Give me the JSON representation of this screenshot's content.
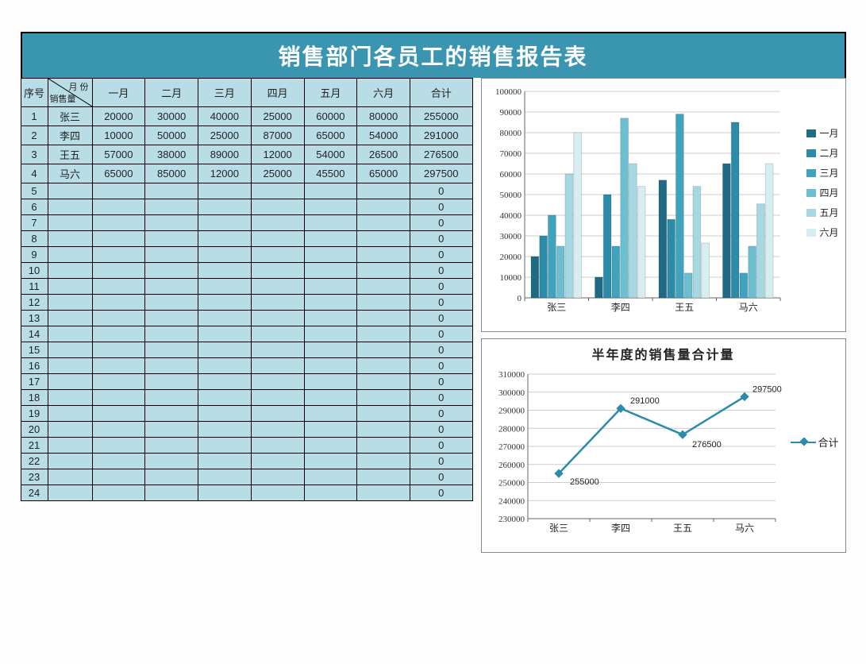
{
  "title": "销售部门各员工的销售报告表",
  "table": {
    "corner_top": "月 份",
    "corner_bottom": "销售量",
    "headers": [
      "序号",
      "",
      "一月",
      "二月",
      "三月",
      "四月",
      "五月",
      "六月",
      "合计"
    ],
    "rows": [
      {
        "idx": "1",
        "name": "张三",
        "m": [
          20000,
          30000,
          40000,
          25000,
          60000,
          80000
        ],
        "total": 255000
      },
      {
        "idx": "2",
        "name": "李四",
        "m": [
          10000,
          50000,
          25000,
          87000,
          65000,
          54000
        ],
        "total": 291000
      },
      {
        "idx": "3",
        "name": "王五",
        "m": [
          57000,
          38000,
          89000,
          12000,
          54000,
          26500
        ],
        "total": 276500
      },
      {
        "idx": "4",
        "name": "马六",
        "m": [
          65000,
          85000,
          12000,
          25000,
          45500,
          65000
        ],
        "total": 297500
      }
    ],
    "empty_rows": 20,
    "bg_color": "#b9dde6",
    "border_color": "#000000"
  },
  "bar_chart": {
    "type": "bar",
    "categories": [
      "张三",
      "李四",
      "王五",
      "马六"
    ],
    "series": [
      {
        "name": "一月",
        "color": "#1f6b84",
        "values": [
          20000,
          10000,
          57000,
          65000
        ]
      },
      {
        "name": "二月",
        "color": "#2b8ba8",
        "values": [
          30000,
          50000,
          38000,
          85000
        ]
      },
      {
        "name": "三月",
        "color": "#3fa3bd",
        "values": [
          40000,
          25000,
          89000,
          12000
        ]
      },
      {
        "name": "四月",
        "color": "#6bbfd1",
        "values": [
          25000,
          87000,
          12000,
          25000
        ]
      },
      {
        "name": "五月",
        "color": "#a6d8e3",
        "values": [
          60000,
          65000,
          54000,
          45500
        ]
      },
      {
        "name": "六月",
        "color": "#d8edf2",
        "values": [
          80000,
          54000,
          26500,
          65000
        ]
      }
    ],
    "ylim": [
      0,
      100000
    ],
    "ytick_step": 10000,
    "grid_color": "#cccccc",
    "axis_color": "#666666",
    "font_size": 11
  },
  "line_chart": {
    "type": "line",
    "title": "半年度的销售量合计量",
    "categories": [
      "张三",
      "李四",
      "王五",
      "马六"
    ],
    "series_name": "合计",
    "values": [
      255000,
      291000,
      276500,
      297500
    ],
    "line_color": "#2b8ba8",
    "marker_color": "#2b8ba8",
    "ylim": [
      230000,
      310000
    ],
    "ytick_step": 10000,
    "grid_color": "#cccccc",
    "axis_color": "#666666",
    "font_size": 11,
    "title_fontsize": 16
  },
  "colors": {
    "title_bg": "#3a96b0",
    "title_fg": "#ffffff"
  }
}
